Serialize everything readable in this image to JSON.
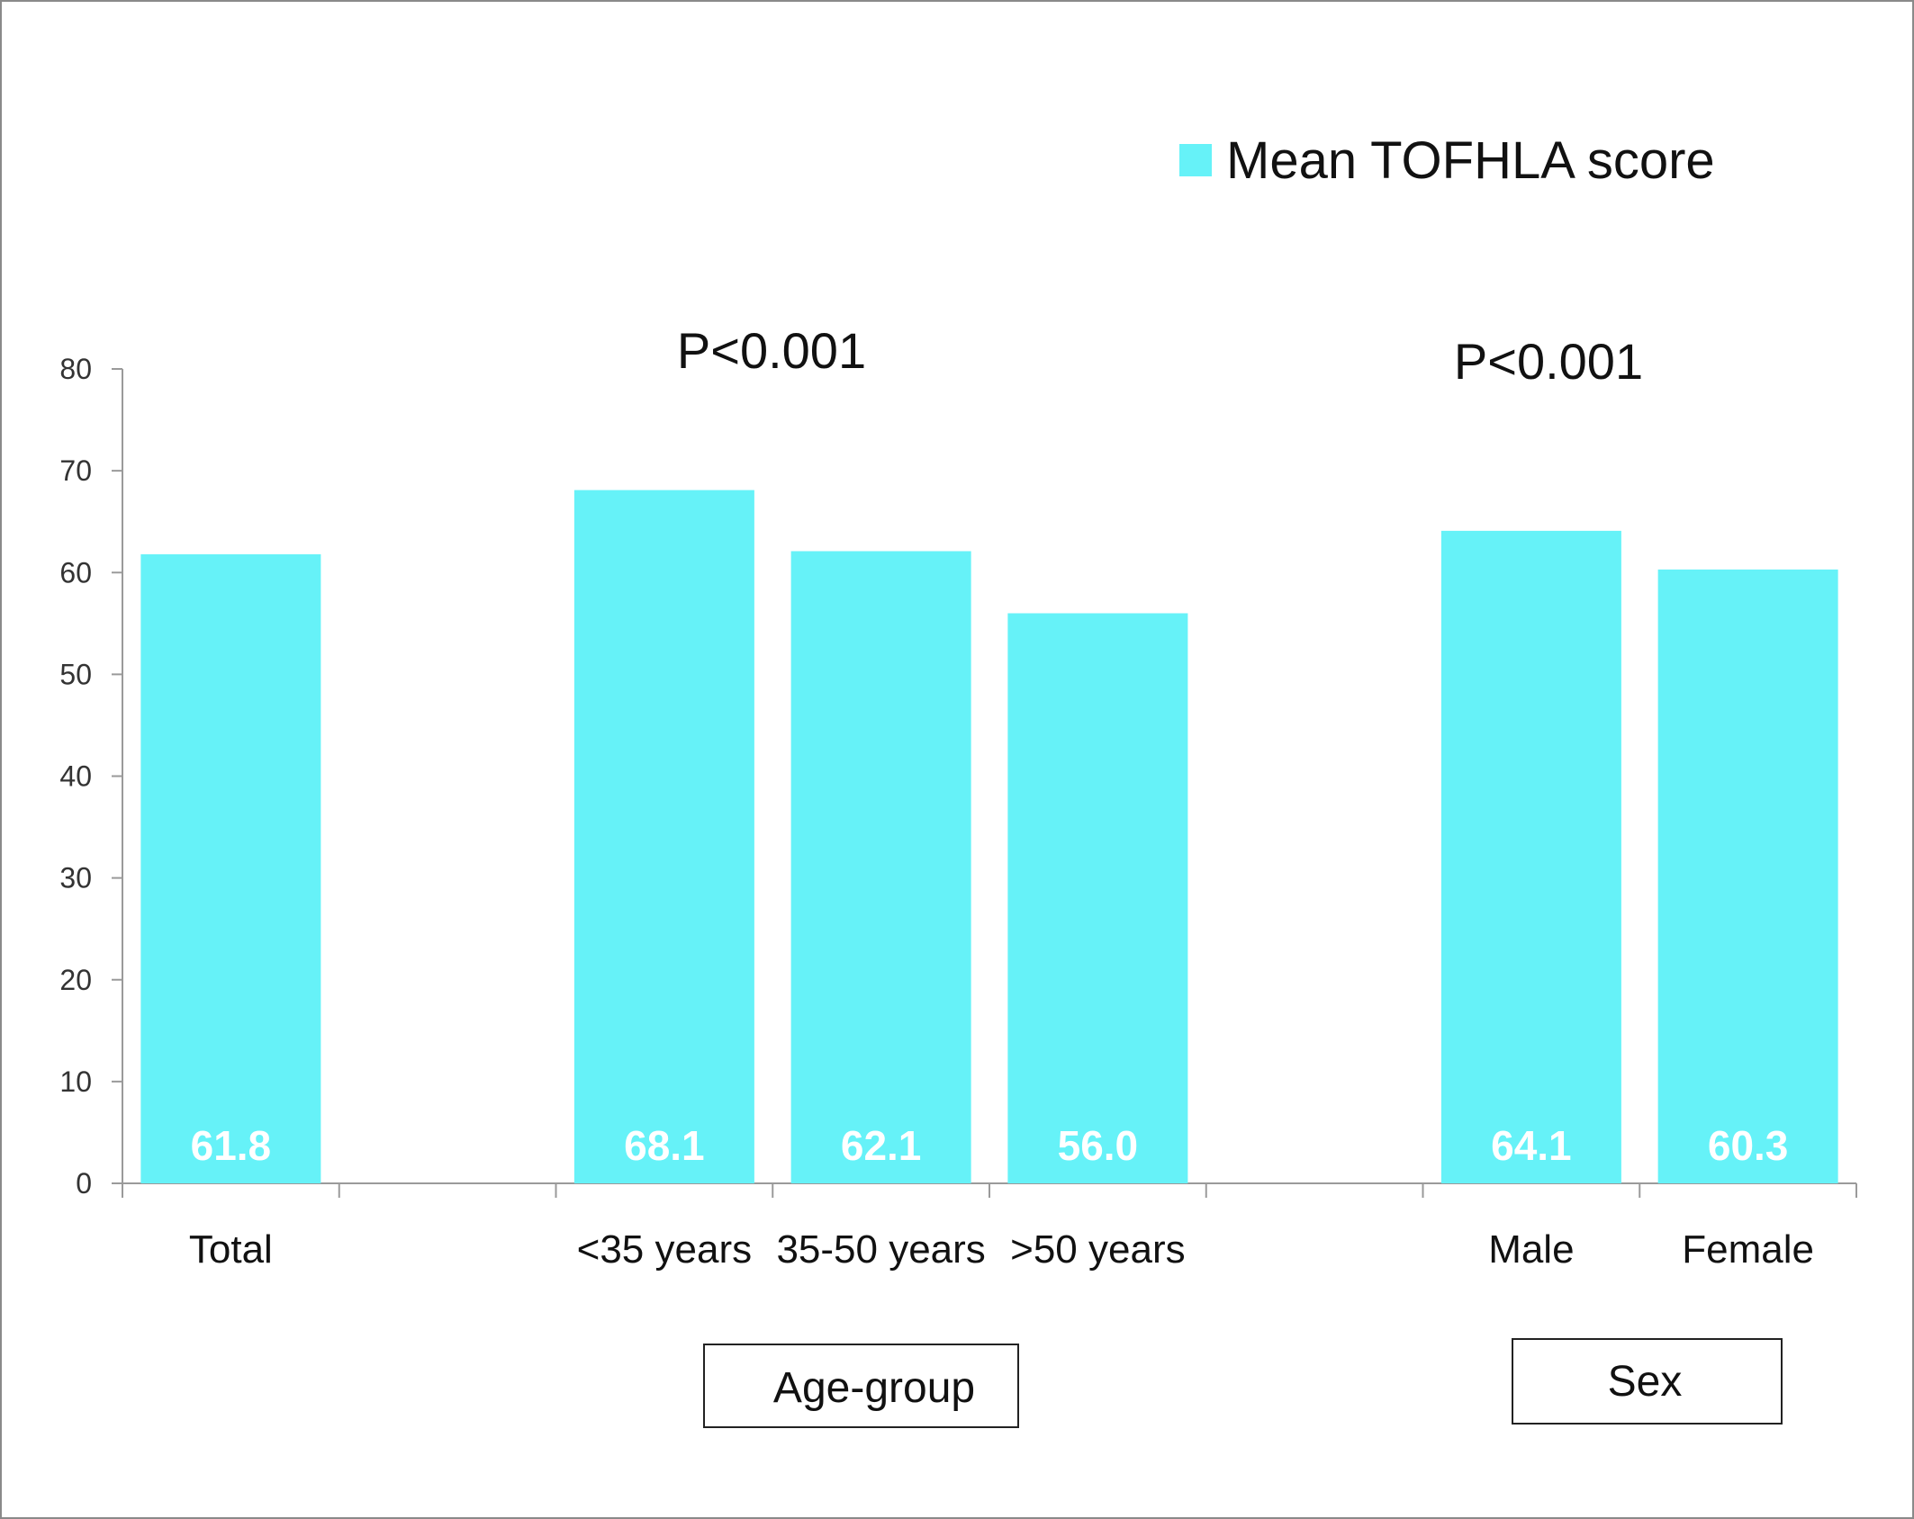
{
  "chart_data": {
    "type": "bar",
    "categories": [
      "Total",
      "",
      "<35 years",
      "35-50 years",
      ">50 years",
      "",
      "Male",
      "Female"
    ],
    "series": [
      {
        "name": "Mean TOFHLA score",
        "values": [
          61.8,
          null,
          68.1,
          62.1,
          56.0,
          null,
          64.1,
          60.3
        ]
      }
    ],
    "data_labels": [
      "61.8",
      "",
      "68.1",
      "62.1",
      "56.0",
      "",
      "64.1",
      "60.3"
    ],
    "yticks": [
      "0",
      "10",
      "20",
      "30",
      "40",
      "50",
      "60",
      "70",
      "80"
    ],
    "ylim": [
      0,
      80
    ],
    "grid": false,
    "legend": "top-right",
    "bar_color": "#66F2F8",
    "annotations": [
      {
        "text": "P<0.001",
        "group": "age"
      },
      {
        "text": "P<0.001",
        "group": "sex"
      }
    ],
    "group_labels": [
      {
        "text": "Age-group",
        "group": "age"
      },
      {
        "text": "Sex",
        "group": "sex"
      }
    ]
  }
}
